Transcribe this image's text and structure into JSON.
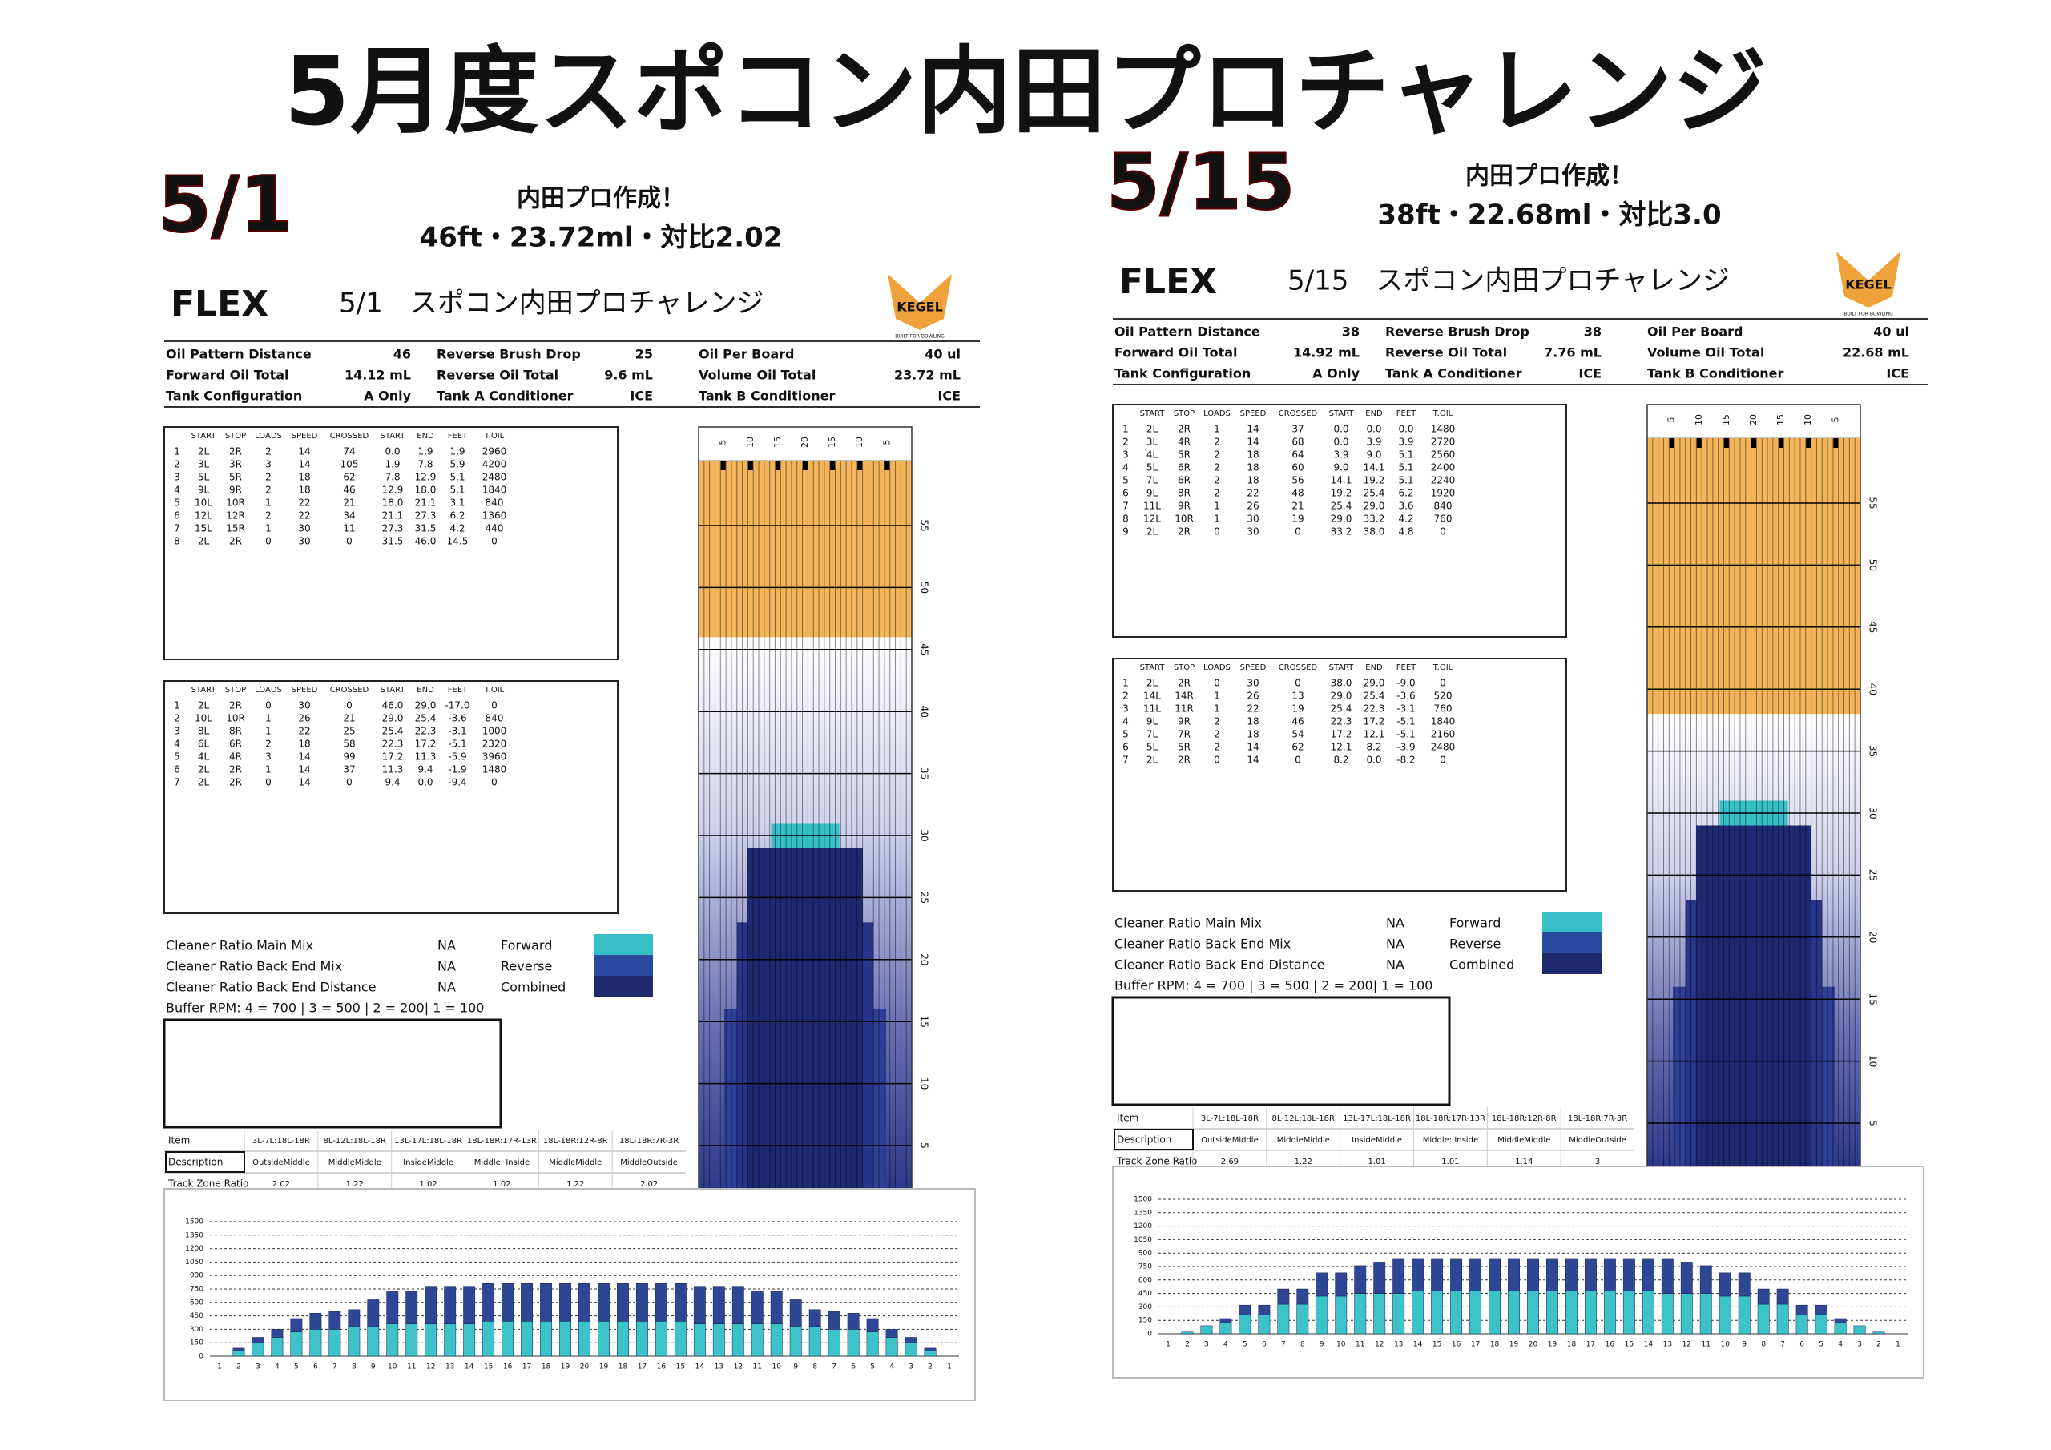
{
  "title": "5月度スポコン内田プロチャレンジ",
  "panels": [
    {
      "date": "5/1",
      "note": "内田プロ作成！",
      "spec": "46ft・23.72ml・対比2.02",
      "logo": "FLEX",
      "sheet_title": "5/1　スポコン内田プロチャレンジ",
      "kegel": "KEGEL",
      "kegel_sub": "BUILT FOR BOWLING",
      "summary": [
        [
          "Oil Pattern Distance",
          "46",
          "Reverse Brush Drop",
          "25",
          "Oil Per Board",
          "40 ul"
        ],
        [
          "Forward Oil Total",
          "14.12 mL",
          "Reverse Oil Total",
          "9.6 mL",
          "Volume Oil Total",
          "23.72 mL"
        ],
        [
          "Tank Configuration",
          "A Only",
          "Tank A Conditioner",
          "ICE",
          "Tank B Conditioner",
          "ICE"
        ]
      ],
      "forward": {
        "headers": [
          "START",
          "STOP",
          "LOADS",
          "SPEED",
          "CROSSED",
          "START",
          "END",
          "FEET",
          "T.OIL"
        ],
        "rows": [
          [
            "1",
            "2L",
            "2R",
            "2",
            "14",
            "74",
            "0.0",
            "1.9",
            "1.9",
            "2960"
          ],
          [
            "2",
            "3L",
            "3R",
            "3",
            "14",
            "105",
            "1.9",
            "7.8",
            "5.9",
            "4200"
          ],
          [
            "3",
            "5L",
            "5R",
            "2",
            "18",
            "62",
            "7.8",
            "12.9",
            "5.1",
            "2480"
          ],
          [
            "4",
            "9L",
            "9R",
            "2",
            "18",
            "46",
            "12.9",
            "18.0",
            "5.1",
            "1840"
          ],
          [
            "5",
            "10L",
            "10R",
            "1",
            "22",
            "21",
            "18.0",
            "21.1",
            "3.1",
            "840"
          ],
          [
            "6",
            "12L",
            "12R",
            "2",
            "22",
            "34",
            "21.1",
            "27.3",
            "6.2",
            "1360"
          ],
          [
            "7",
            "15L",
            "15R",
            "1",
            "30",
            "11",
            "27.3",
            "31.5",
            "4.2",
            "440"
          ],
          [
            "8",
            "2L",
            "2R",
            "0",
            "30",
            "0",
            "31.5",
            "46.0",
            "14.5",
            "0"
          ]
        ]
      },
      "reverse": {
        "headers": [
          "START",
          "STOP",
          "LOADS",
          "SPEED",
          "CROSSED",
          "START",
          "END",
          "FEET",
          "T.OIL"
        ],
        "rows": [
          [
            "1",
            "2L",
            "2R",
            "0",
            "30",
            "0",
            "46.0",
            "29.0",
            "-17.0",
            "0"
          ],
          [
            "2",
            "10L",
            "10R",
            "1",
            "26",
            "21",
            "29.0",
            "25.4",
            "-3.6",
            "840"
          ],
          [
            "3",
            "8L",
            "8R",
            "1",
            "22",
            "25",
            "25.4",
            "22.3",
            "-3.1",
            "1000"
          ],
          [
            "4",
            "6L",
            "6R",
            "2",
            "18",
            "58",
            "22.3",
            "17.2",
            "-5.1",
            "2320"
          ],
          [
            "5",
            "4L",
            "4R",
            "3",
            "14",
            "99",
            "17.2",
            "11.3",
            "-5.9",
            "3960"
          ],
          [
            "6",
            "2L",
            "2R",
            "1",
            "14",
            "37",
            "11.3",
            "9.4",
            "-1.9",
            "1480"
          ],
          [
            "7",
            "2L",
            "2R",
            "0",
            "14",
            "0",
            "9.4",
            "0.0",
            "-9.4",
            "0"
          ]
        ]
      },
      "cleaner": [
        [
          "Cleaner Ratio Main Mix",
          "NA",
          "Forward"
        ],
        [
          "Cleaner Ratio Back End Mix",
          "NA",
          "Reverse"
        ],
        [
          "Cleaner Ratio Back End Distance",
          "NA",
          "Combined"
        ]
      ],
      "buffer": "Buffer RPM: 4 = 700 | 3 = 500 | 2 = 200| 1 = 100",
      "zones": [
        [
          "Item",
          "3L-7L:18L-18R",
          "8L-12L:18L-18R",
          "13L-17L:18L-18R",
          "18L-18R:17R-13R",
          "18L-18R:12R-8R",
          "18L-18R:7R-3R"
        ],
        [
          "Description",
          "OutsideMiddle",
          "MiddleMiddle",
          "InsideMiddle",
          "Middle: Inside",
          "MiddleMiddle",
          "MiddleOutside"
        ],
        [
          "Track Zone Ratio",
          "2.02",
          "1.22",
          "1.02",
          "1.02",
          "1.22",
          "2.02"
        ]
      ],
      "lane": {
        "boards": [
          5,
          10,
          15,
          20,
          15,
          10,
          5
        ],
        "feet": [
          5,
          10,
          15,
          20,
          25,
          30,
          35,
          40,
          45,
          50,
          55
        ]
      }
    },
    {
      "date": "5/15",
      "note": "内田プロ作成！",
      "spec": "38ft・22.68ml・対比3.0",
      "logo": "FLEX",
      "sheet_title": "5/15　スポコン内田プロチャレンジ",
      "kegel": "KEGEL",
      "kegel_sub": "BUILT FOR BOWLING",
      "summary": [
        [
          "Oil Pattern Distance",
          "38",
          "Reverse Brush Drop",
          "38",
          "Oil Per Board",
          "40 ul"
        ],
        [
          "Forward Oil Total",
          "14.92 mL",
          "Reverse Oil Total",
          "7.76 mL",
          "Volume Oil Total",
          "22.68 mL"
        ],
        [
          "Tank Configuration",
          "A Only",
          "Tank A Conditioner",
          "ICE",
          "Tank B Conditioner",
          "ICE"
        ]
      ],
      "forward": {
        "headers": [
          "START",
          "STOP",
          "LOADS",
          "SPEED",
          "CROSSED",
          "START",
          "END",
          "FEET",
          "T.OIL"
        ],
        "rows": [
          [
            "1",
            "2L",
            "2R",
            "1",
            "14",
            "37",
            "0.0",
            "0.0",
            "0.0",
            "1480"
          ],
          [
            "2",
            "3L",
            "4R",
            "2",
            "14",
            "68",
            "0.0",
            "3.9",
            "3.9",
            "2720"
          ],
          [
            "3",
            "4L",
            "5R",
            "2",
            "18",
            "64",
            "3.9",
            "9.0",
            "5.1",
            "2560"
          ],
          [
            "4",
            "5L",
            "6R",
            "2",
            "18",
            "60",
            "9.0",
            "14.1",
            "5.1",
            "2400"
          ],
          [
            "5",
            "7L",
            "6R",
            "2",
            "18",
            "56",
            "14.1",
            "19.2",
            "5.1",
            "2240"
          ],
          [
            "6",
            "9L",
            "8R",
            "2",
            "22",
            "48",
            "19.2",
            "25.4",
            "6.2",
            "1920"
          ],
          [
            "7",
            "11L",
            "9R",
            "1",
            "26",
            "21",
            "25.4",
            "29.0",
            "3.6",
            "840"
          ],
          [
            "8",
            "12L",
            "10R",
            "1",
            "30",
            "19",
            "29.0",
            "33.2",
            "4.2",
            "760"
          ],
          [
            "9",
            "2L",
            "2R",
            "0",
            "30",
            "0",
            "33.2",
            "38.0",
            "4.8",
            "0"
          ]
        ]
      },
      "reverse": {
        "headers": [
          "START",
          "STOP",
          "LOADS",
          "SPEED",
          "CROSSED",
          "START",
          "END",
          "FEET",
          "T.OIL"
        ],
        "rows": [
          [
            "1",
            "2L",
            "2R",
            "0",
            "30",
            "0",
            "38.0",
            "29.0",
            "-9.0",
            "0"
          ],
          [
            "2",
            "14L",
            "14R",
            "1",
            "26",
            "13",
            "29.0",
            "25.4",
            "-3.6",
            "520"
          ],
          [
            "3",
            "11L",
            "11R",
            "1",
            "22",
            "19",
            "25.4",
            "22.3",
            "-3.1",
            "760"
          ],
          [
            "4",
            "9L",
            "9R",
            "2",
            "18",
            "46",
            "22.3",
            "17.2",
            "-5.1",
            "1840"
          ],
          [
            "5",
            "7L",
            "7R",
            "2",
            "18",
            "54",
            "17.2",
            "12.1",
            "-5.1",
            "2160"
          ],
          [
            "6",
            "5L",
            "5R",
            "2",
            "14",
            "62",
            "12.1",
            "8.2",
            "-3.9",
            "2480"
          ],
          [
            "7",
            "2L",
            "2R",
            "0",
            "14",
            "0",
            "8.2",
            "0.0",
            "-8.2",
            "0"
          ]
        ]
      },
      "cleaner": [
        [
          "Cleaner Ratio Main Mix",
          "NA",
          "Forward"
        ],
        [
          "Cleaner Ratio Back End Mix",
          "NA",
          "Reverse"
        ],
        [
          "Cleaner Ratio Back End Distance",
          "NA",
          "Combined"
        ]
      ],
      "buffer": "Buffer RPM: 4 = 700 | 3 = 500 | 2 = 200| 1 = 100",
      "zones": [
        [
          "Item",
          "3L-7L:18L-18R",
          "8L-12L:18L-18R",
          "13L-17L:18L-18R",
          "18L-18R:17R-13R",
          "18L-18R:12R-8R",
          "18L-18R:7R-3R"
        ],
        [
          "Description",
          "OutsideMiddle",
          "MiddleMiddle",
          "InsideMiddle",
          "Middle: Inside",
          "MiddleMiddle",
          "MiddleOutside"
        ],
        [
          "Track Zone Ratio",
          "2.69",
          "1.22",
          "1.01",
          "1.01",
          "1.14",
          "3"
        ]
      ],
      "lane": {
        "boards": [
          5,
          10,
          15,
          20,
          15,
          10,
          5
        ],
        "feet": [
          5,
          10,
          15,
          20,
          25,
          30,
          35,
          40,
          45,
          50,
          55
        ]
      }
    }
  ],
  "chart_data": [
    {
      "type": "bar",
      "categories": [
        1,
        2,
        3,
        4,
        5,
        6,
        7,
        8,
        9,
        10,
        11,
        12,
        13,
        14,
        15,
        16,
        17,
        18,
        19,
        20,
        19,
        18,
        17,
        16,
        15,
        14,
        13,
        12,
        11,
        10,
        9,
        8,
        7,
        6,
        5,
        4,
        3,
        2,
        1
      ],
      "series": [
        {
          "color": "#3cc3c9",
          "values": [
            0,
            60,
            150,
            210,
            270,
            300,
            300,
            330,
            330,
            360,
            360,
            360,
            360,
            360,
            390,
            390,
            390,
            390,
            390,
            390,
            390,
            390,
            390,
            390,
            390,
            360,
            360,
            360,
            360,
            360,
            330,
            330,
            300,
            300,
            270,
            210,
            150,
            60,
            0
          ]
        },
        {
          "color": "#2e4795",
          "values": [
            0,
            30,
            60,
            90,
            150,
            180,
            200,
            190,
            300,
            360,
            360,
            420,
            420,
            420,
            420,
            420,
            420,
            420,
            420,
            420,
            420,
            420,
            420,
            420,
            420,
            420,
            420,
            420,
            360,
            360,
            300,
            190,
            200,
            180,
            150,
            90,
            60,
            30,
            0
          ]
        }
      ],
      "ylim": [
        0,
        1500
      ],
      "yticks": [
        0,
        150,
        300,
        450,
        600,
        750,
        900,
        1050,
        1200,
        1350,
        1500
      ],
      "grid": true
    },
    {
      "type": "bar",
      "categories": [
        1,
        2,
        3,
        4,
        5,
        6,
        7,
        8,
        9,
        10,
        11,
        12,
        13,
        14,
        15,
        16,
        17,
        18,
        19,
        20,
        19,
        18,
        17,
        16,
        15,
        14,
        13,
        12,
        11,
        10,
        9,
        8,
        7,
        6,
        5,
        4,
        3,
        2,
        1
      ],
      "series": [
        {
          "color": "#3cc3c9",
          "values": [
            0,
            20,
            90,
            130,
            210,
            210,
            330,
            330,
            420,
            420,
            450,
            450,
            450,
            480,
            480,
            480,
            480,
            480,
            480,
            480,
            480,
            480,
            480,
            480,
            480,
            480,
            450,
            450,
            450,
            420,
            420,
            330,
            330,
            210,
            210,
            130,
            90,
            20,
            0
          ]
        },
        {
          "color": "#2e4795",
          "values": [
            0,
            0,
            0,
            40,
            110,
            110,
            170,
            170,
            260,
            260,
            310,
            350,
            390,
            360,
            360,
            360,
            360,
            360,
            360,
            360,
            360,
            360,
            360,
            360,
            360,
            360,
            390,
            350,
            310,
            260,
            260,
            170,
            170,
            110,
            110,
            40,
            0,
            0,
            0
          ]
        }
      ],
      "ylim": [
        0,
        1500
      ],
      "yticks": [
        0,
        150,
        300,
        450,
        600,
        750,
        900,
        1050,
        1200,
        1350,
        1500
      ],
      "grid": true
    }
  ]
}
